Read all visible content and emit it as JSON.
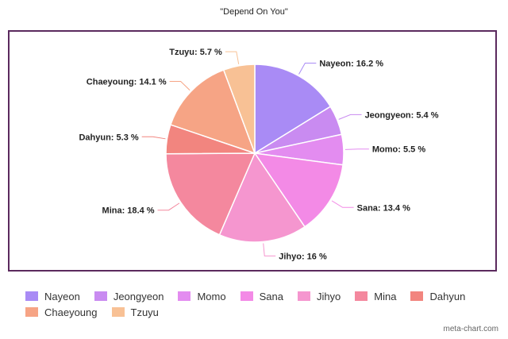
{
  "chart_data": {
    "type": "pie",
    "title": "\"Depend On You\"",
    "legend_position": "bottom",
    "slices": [
      {
        "name": "Nayeon",
        "label": "Nayeon: 16.2 %",
        "value": 16.2,
        "color": "#a98bf5"
      },
      {
        "name": "Jeongyeon",
        "label": "Jeongyeon: 5.4 %",
        "value": 5.4,
        "color": "#c98bf1"
      },
      {
        "name": "Momo",
        "label": "Momo: 5.5 %",
        "value": 5.5,
        "color": "#e38cf0"
      },
      {
        "name": "Sana",
        "label": "Sana: 13.4 %",
        "value": 13.4,
        "color": "#f38ae6"
      },
      {
        "name": "Jihyo",
        "label": "Jihyo: 16 %",
        "value": 16.0,
        "color": "#f596cf"
      },
      {
        "name": "Mina",
        "label": "Mina: 18.4 %",
        "value": 18.4,
        "color": "#f4889e"
      },
      {
        "name": "Dahyun",
        "label": "Dahyun: 5.3 %",
        "value": 5.3,
        "color": "#f2857f"
      },
      {
        "name": "Chaeyoung",
        "label": "Chaeyoung: 14.1 %",
        "value": 14.1,
        "color": "#f6a485"
      },
      {
        "name": "Tzuyu",
        "label": "Tzuyu: 5.7 %",
        "value": 5.7,
        "color": "#f8c195"
      }
    ]
  },
  "watermark": "meta-chart.com"
}
